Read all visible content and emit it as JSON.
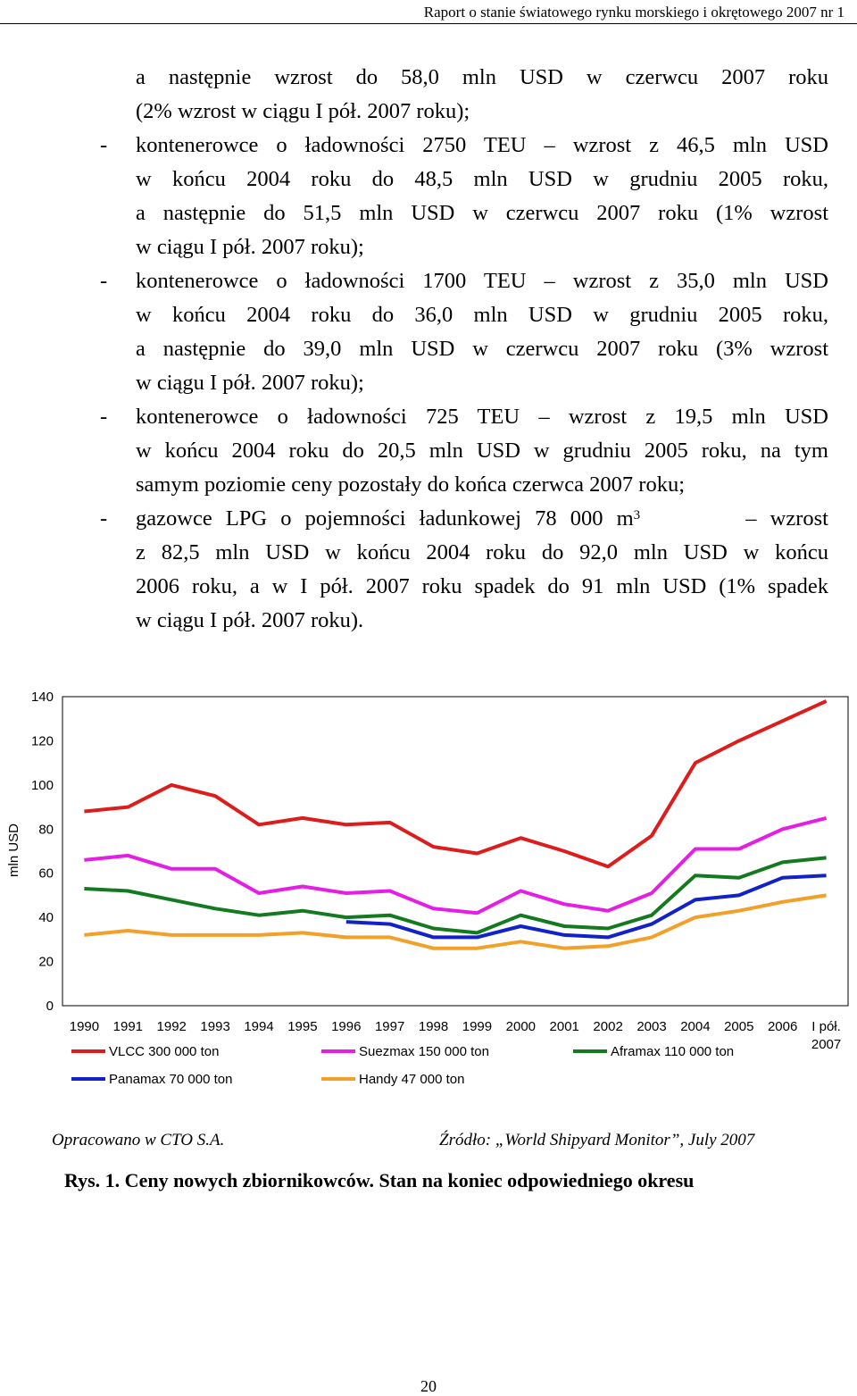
{
  "header": {
    "title": "Raport o stanie światowego rynku morskiego i okrętowego 2007 nr 1"
  },
  "body": {
    "lines": [
      "a następnie wzrost do 58,0 mln USD w czerwcu 2007 roku",
      "(2% wzrost w ciągu I pół. 2007 roku);",
      "kontenerowce o ładowności 2750 TEU – wzrost z 46,5 mln USD",
      "w końcu 2004 roku do 48,5 mln USD w grudniu 2005 roku,",
      "a następnie do 51,5 mln USD w czerwcu 2007 roku (1% wzrost",
      "w ciągu I pół. 2007 roku);",
      "kontenerowce o ładowności 1700 TEU – wzrost z 35,0 mln USD",
      "w końcu 2004 roku do 36,0 mln USD w grudniu 2005 roku,",
      "a następnie do 39,0 mln USD w czerwcu 2007 roku (3% wzrost",
      "w ciągu I pół. 2007 roku);",
      "kontenerowce o ładowności 725 TEU – wzrost z 19,5 mln USD",
      "w końcu 2004 roku do 20,5 mln USD w grudniu 2005 roku, na tym",
      "samym poziomie ceny pozostały do końca czerwca 2007 roku;",
      "gazowce LPG o pojemności ładunkowej 78 000 m",
      "z 82,5 mln USD w końcu 2004 roku do 92,0 mln USD w końcu",
      "2006 roku, a w I pół. 2007 roku spadek do 91 mln USD (1% spadek",
      "w ciągu I pół. 2007 roku)."
    ],
    "line13_sup": "3",
    "line13_tail": "– wzrost",
    "dash": "-"
  },
  "chart_data": {
    "type": "line",
    "categories": [
      "1990",
      "1991",
      "1992",
      "1993",
      "1994",
      "1995",
      "1996",
      "1997",
      "1998",
      "1999",
      "2000",
      "2001",
      "2002",
      "2003",
      "2004",
      "2005",
      "2006",
      "I pół. 2007"
    ],
    "ylabel": "mln USD",
    "ylim": [
      0,
      140
    ],
    "yticks": [
      0,
      20,
      40,
      60,
      80,
      100,
      120,
      140
    ],
    "grid": false,
    "legend_position": "bottom",
    "series": [
      {
        "name": "VLCC 300 000 ton",
        "color": "#dd1c1c",
        "values": [
          88,
          90,
          100,
          95,
          82,
          85,
          82,
          83,
          72,
          69,
          76,
          70,
          63,
          77,
          110,
          120,
          129,
          138
        ]
      },
      {
        "name": "Suezmax 150 000 ton",
        "color": "#e51ee5",
        "values": [
          66,
          68,
          62,
          62,
          51,
          54,
          51,
          52,
          44,
          42,
          52,
          46,
          43,
          51,
          71,
          71,
          80,
          85
        ]
      },
      {
        "name": "Aframax 110 000 ton",
        "color": "#137a1f",
        "values": [
          53,
          52,
          48,
          44,
          41,
          43,
          40,
          41,
          35,
          33,
          41,
          36,
          35,
          41,
          59,
          58,
          65,
          67
        ]
      },
      {
        "name": "Panamax 70 000 ton",
        "color": "#1123c8",
        "values": [
          null,
          null,
          null,
          null,
          null,
          null,
          38,
          37,
          31,
          31,
          36,
          32,
          31,
          37,
          48,
          50,
          58,
          59
        ]
      },
      {
        "name": "Handy 47 000 ton",
        "color": "#f2a029",
        "values": [
          32,
          34,
          32,
          32,
          32,
          33,
          31,
          31,
          26,
          26,
          29,
          26,
          27,
          31,
          40,
          43,
          47,
          50
        ]
      }
    ]
  },
  "source": {
    "left": "Opracowano w CTO S.A.",
    "right": "Źródło: „World Shipyard Monitor”, July 2007"
  },
  "caption": "Rys. 1. Ceny nowych zbiornikowców. Stan na koniec odpowiedniego okresu",
  "page_number": "20"
}
